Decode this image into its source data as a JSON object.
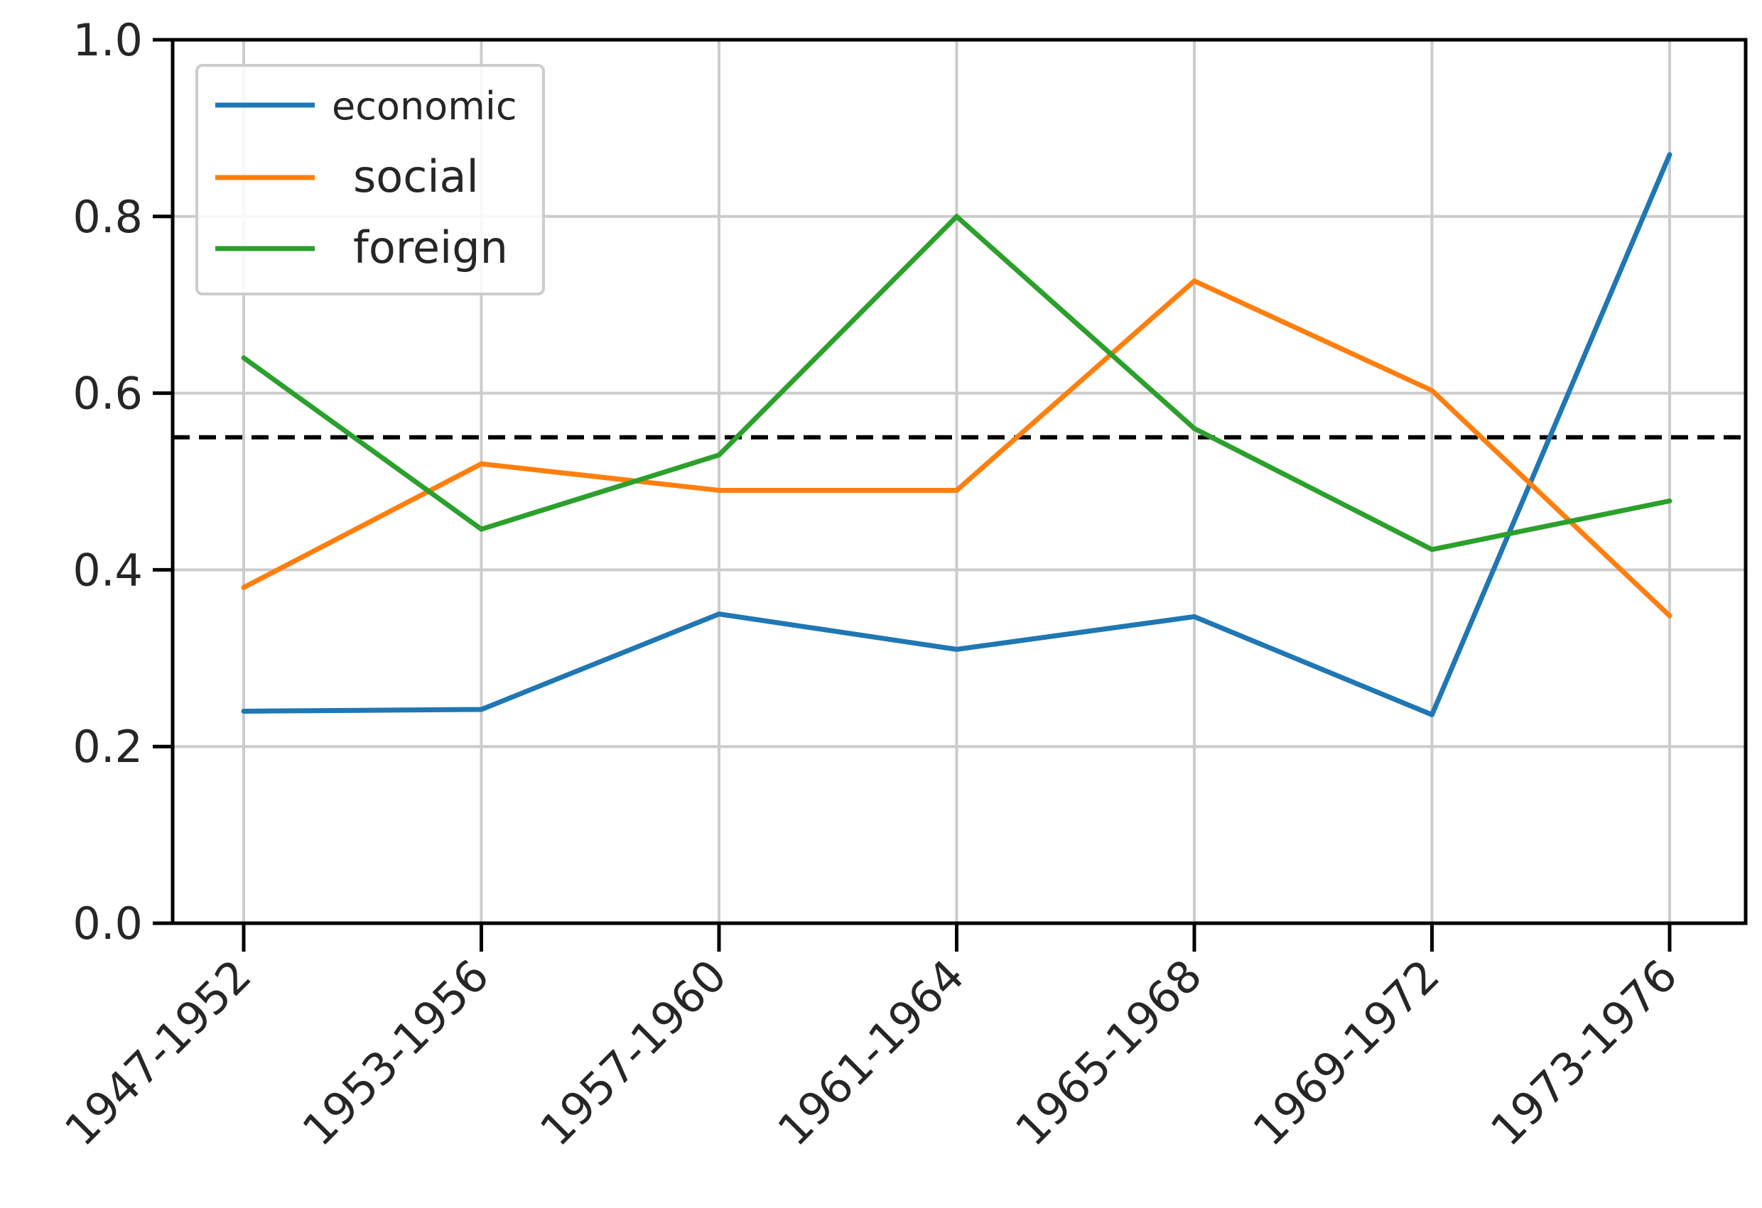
{
  "chart_data": {
    "type": "line",
    "title": "",
    "xlabel": "",
    "ylabel": "",
    "categories": [
      "1947-1952",
      "1953-1956",
      "1957-1960",
      "1961-1964",
      "1965-1968",
      "1969-1972",
      "1973-1976"
    ],
    "ylim": [
      0.0,
      1.0
    ],
    "yticks": [
      "0.0",
      "0.2",
      "0.4",
      "0.6",
      "0.8",
      "1.0"
    ],
    "ytick_values": [
      0.0,
      0.2,
      0.4,
      0.6,
      0.8,
      1.0
    ],
    "grid": true,
    "legend_position": "top-left",
    "threshold": {
      "value": 0.55,
      "style": "dashed",
      "color": "#000000"
    },
    "series": [
      {
        "name": "economic",
        "color": "#1f77b4",
        "values": [
          0.24,
          0.242,
          0.35,
          0.31,
          0.347,
          0.236,
          0.87
        ]
      },
      {
        "name": "social",
        "color": "#ff7f0e",
        "values": [
          0.38,
          0.52,
          0.49,
          0.49,
          0.727,
          0.603,
          0.348
        ]
      },
      {
        "name": "foreign",
        "color": "#2ca02c",
        "values": [
          0.64,
          0.446,
          0.53,
          0.8,
          0.56,
          0.423,
          0.478
        ]
      }
    ]
  }
}
